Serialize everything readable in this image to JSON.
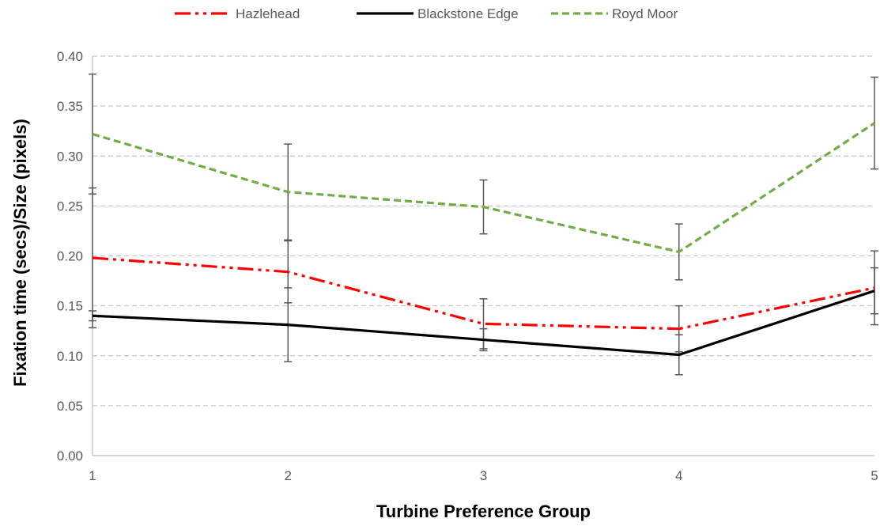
{
  "chart_data": {
    "type": "line",
    "title": "",
    "xlabel": "Turbine Preference Group",
    "ylabel": "Fixation time (secs)/Size (pixels)",
    "x": [
      1,
      2,
      3,
      4,
      5
    ],
    "xlim": [
      1,
      5
    ],
    "ylim": [
      0,
      0.4
    ],
    "yticks": [
      0.0,
      0.05,
      0.1,
      0.15,
      0.2,
      0.25,
      0.3,
      0.35,
      0.4
    ],
    "xticks": [
      1,
      2,
      3,
      4,
      5
    ],
    "grid": true,
    "legend_position": "top",
    "series": [
      {
        "name": "Hazlehead",
        "values": [
          0.198,
          0.184,
          0.132,
          0.127,
          0.168
        ],
        "error": [
          0.07,
          0.031,
          0.025,
          0.023,
          0.037
        ],
        "color": "#ff0000",
        "dash": "dash-dot-dot"
      },
      {
        "name": "Blackstone Edge",
        "values": [
          0.14,
          0.131,
          0.116,
          0.101,
          0.165
        ],
        "error": [
          0.005,
          0.037,
          0.011,
          0.02,
          0.023
        ],
        "color": "#000000",
        "dash": "solid"
      },
      {
        "name": "Royd Moor",
        "values": [
          0.322,
          0.264,
          0.249,
          0.204,
          0.333
        ],
        "error": [
          0.06,
          0.048,
          0.027,
          0.028,
          0.046
        ],
        "color": "#70ad47",
        "dash": "dashed"
      }
    ]
  }
}
